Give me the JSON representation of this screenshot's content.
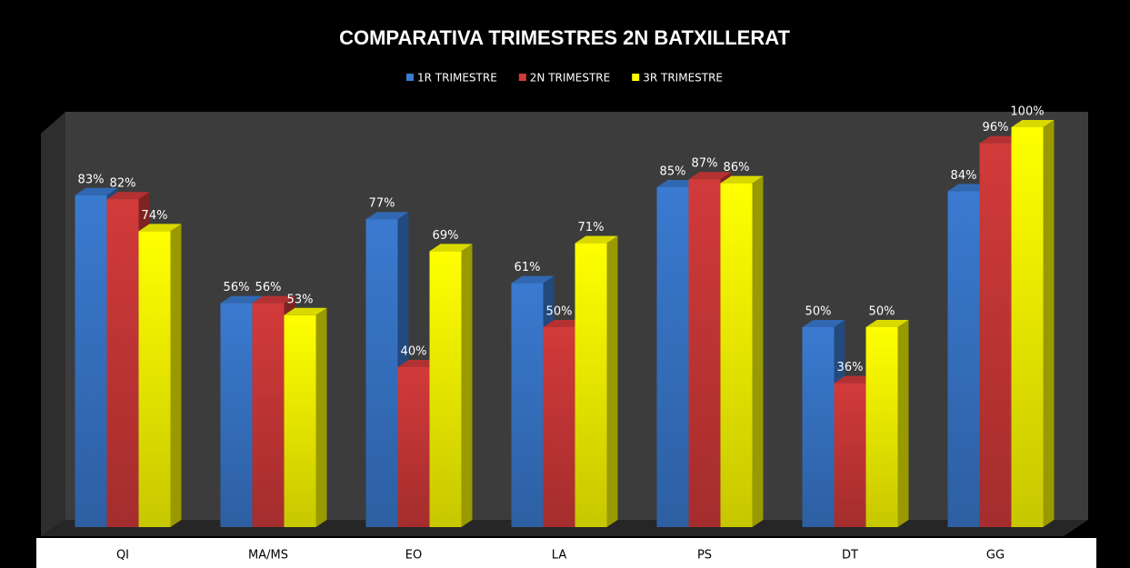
{
  "chart_data": {
    "type": "bar3d",
    "title": "COMPARATIVA TRIMESTRES 2N BATXILLERAT",
    "categories": [
      "QI",
      "MA/MS",
      "EO",
      "LA",
      "PS",
      "DT",
      "GG"
    ],
    "series": [
      {
        "name": "1R TRIMESTRE",
        "color": "#3a7ad0",
        "values": [
          83,
          56,
          77,
          61,
          85,
          50,
          84
        ],
        "value_labels": [
          "83%",
          "56%",
          "77%",
          "61%",
          "85%",
          "50%",
          "84%"
        ]
      },
      {
        "name": "2N TRIMESTRE",
        "color": "#d23a3a",
        "values": [
          82,
          56,
          40,
          50,
          87,
          36,
          96
        ],
        "value_labels": [
          "82%",
          "56%",
          "40%",
          "50%",
          "87%",
          "36%",
          "96%"
        ]
      },
      {
        "name": "3R TRIMESTRE",
        "color": "#ffff00",
        "values": [
          74,
          53,
          69,
          71,
          86,
          50,
          100
        ],
        "value_labels": [
          "74%",
          "53%",
          "69%",
          "71%",
          "86%",
          "50%",
          "100%"
        ]
      }
    ]
  }
}
